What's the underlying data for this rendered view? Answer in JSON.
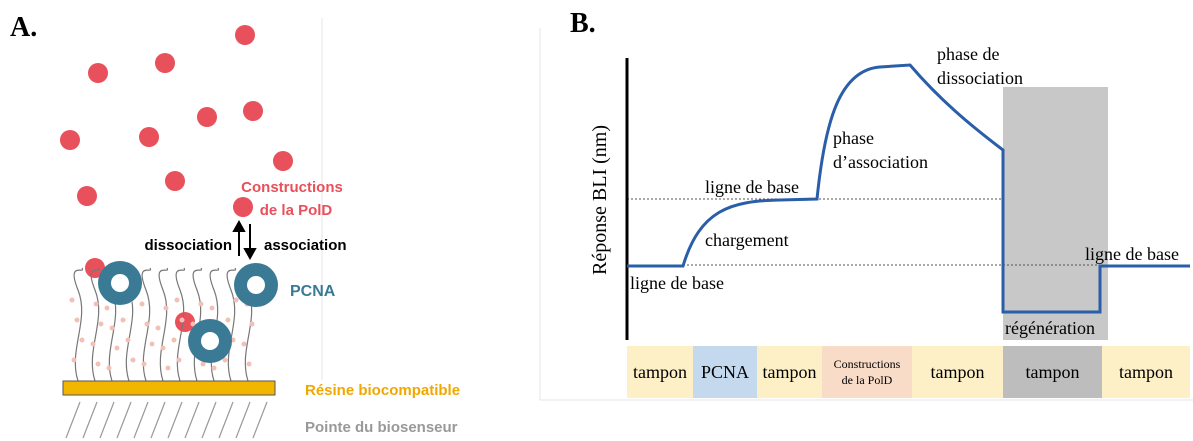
{
  "panel_a": {
    "label": "A.",
    "ligand_label": [
      "Constructions",
      "de la PolD"
    ],
    "dissociation": "dissociation",
    "association": "association",
    "pcna": "PCNA",
    "resin": "Résine biocompatible",
    "tip": "Pointe du biosenseur"
  },
  "panel_b": {
    "label": "B.",
    "y_axis_label": "Réponse BLI (nm)",
    "annotations": [
      {
        "lines": [
          "ligne de base"
        ]
      },
      {
        "lines": [
          "chargement"
        ]
      },
      {
        "lines": [
          "ligne de base"
        ]
      },
      {
        "lines": [
          "phase",
          "d’association"
        ]
      },
      {
        "lines": [
          "phase de",
          "dissociation"
        ]
      },
      {
        "lines": [
          "régénération"
        ]
      },
      {
        "lines": [
          "ligne de base"
        ]
      }
    ],
    "steps": [
      {
        "lines": [
          "tampon"
        ],
        "color": "#fdf0c6"
      },
      {
        "lines": [
          "PCNA"
        ],
        "color": "#c5d9ee"
      },
      {
        "lines": [
          "tampon"
        ],
        "color": "#fdf0c6"
      },
      {
        "lines": [
          "Constructions",
          "de la PolD"
        ],
        "color": "#f9dcc8"
      },
      {
        "lines": [
          "tampon"
        ],
        "color": "#fdf0c6"
      },
      {
        "lines": [
          "tampon"
        ],
        "color": "#bdbdbd"
      },
      {
        "lines": [
          "tampon"
        ],
        "color": "#fdf0c6"
      }
    ]
  }
}
